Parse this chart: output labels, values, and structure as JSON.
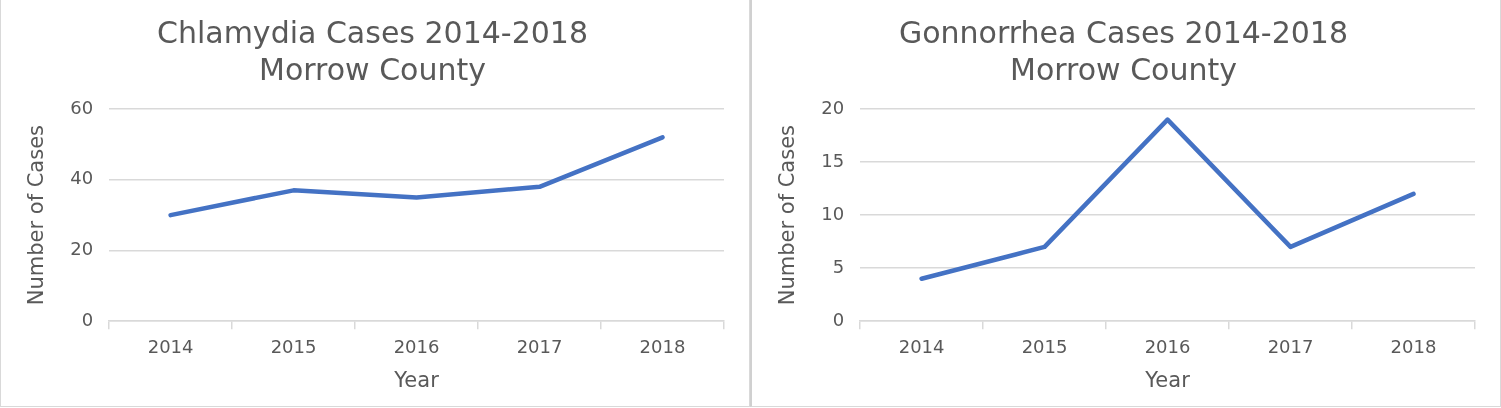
{
  "chart_data": [
    {
      "type": "line",
      "title": [
        "Chlamydia Cases 2014-2018",
        "Morrow County"
      ],
      "xlabel": "Year",
      "ylabel": "Number of Cases",
      "categories": [
        "2014",
        "2015",
        "2016",
        "2017",
        "2018"
      ],
      "series": [
        {
          "color": "#4472c4",
          "values": [
            30,
            37,
            35,
            38,
            52
          ]
        }
      ],
      "ylim": [
        0,
        60
      ],
      "yticks": [
        0,
        20,
        40,
        60
      ],
      "grid": "y",
      "legend": false,
      "marker": "none",
      "line_style": "solid"
    },
    {
      "type": "line",
      "title": [
        "Gonnorrhea Cases 2014-2018",
        "Morrow County"
      ],
      "xlabel": "Year",
      "ylabel": "Number of Cases",
      "categories": [
        "2014",
        "2015",
        "2016",
        "2017",
        "2018"
      ],
      "series": [
        {
          "color": "#4472c4",
          "values": [
            4,
            7,
            19,
            7,
            12
          ]
        }
      ],
      "ylim": [
        0,
        20
      ],
      "yticks": [
        0,
        5,
        10,
        15,
        20
      ],
      "grid": "y",
      "legend": false,
      "marker": "none",
      "line_style": "solid"
    }
  ]
}
